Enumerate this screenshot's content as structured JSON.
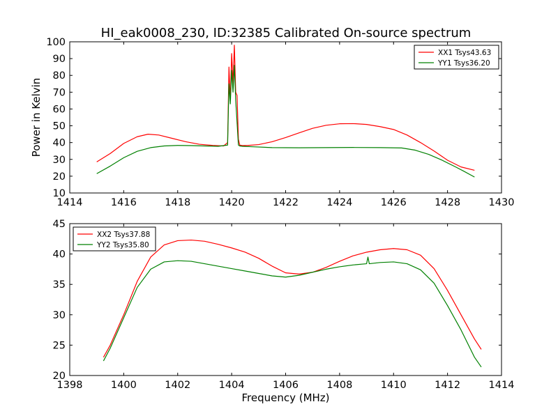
{
  "figure_title": "HI_eak0008_230, ID:32385 Calibrated On-source spectrum",
  "colors": {
    "red": "#ff0000",
    "green": "#008000",
    "axis": "#000000"
  },
  "chart_data": [
    {
      "type": "line",
      "title": "HI_eak0008_230, ID:32385 Calibrated On-source spectrum",
      "xlabel": "",
      "ylabel": "Power in Kelvin",
      "xlim": [
        1414,
        1430
      ],
      "ylim": [
        10,
        100
      ],
      "xticks": [
        1414,
        1416,
        1418,
        1420,
        1422,
        1424,
        1426,
        1428,
        1430
      ],
      "yticks": [
        10,
        20,
        30,
        40,
        50,
        60,
        70,
        80,
        90,
        100
      ],
      "legend_position": "top-right",
      "series": [
        {
          "name": "XX1 Tsys43.63",
          "color": "#ff0000",
          "x": [
            1415.0,
            1415.5,
            1416.0,
            1416.5,
            1416.9,
            1417.3,
            1417.8,
            1418.3,
            1418.8,
            1419.3,
            1419.7,
            1419.85,
            1419.9,
            1419.95,
            1420.0,
            1420.05,
            1420.1,
            1420.15,
            1420.2,
            1420.25,
            1420.3,
            1420.4,
            1420.6,
            1421.0,
            1421.5,
            1422.0,
            1422.5,
            1423.0,
            1423.5,
            1424.0,
            1424.5,
            1425.0,
            1425.5,
            1426.0,
            1426.5,
            1427.0,
            1427.5,
            1428.0,
            1428.5,
            1429.0
          ],
          "y": [
            28.5,
            33.5,
            39.5,
            43.5,
            45.0,
            44.5,
            42.5,
            40.5,
            39.0,
            38.3,
            38.0,
            40.0,
            85.0,
            65.0,
            93.0,
            75.0,
            98.0,
            70.0,
            68.0,
            42.0,
            38.5,
            38.2,
            38.3,
            38.8,
            40.5,
            43.0,
            45.8,
            48.5,
            50.3,
            51.2,
            51.3,
            50.8,
            49.5,
            47.8,
            44.5,
            40.0,
            35.0,
            29.5,
            25.5,
            23.5
          ]
        },
        {
          "name": "YY1 Tsys36.20",
          "color": "#008000",
          "x": [
            1415.0,
            1415.5,
            1416.0,
            1416.5,
            1417.0,
            1417.5,
            1418.0,
            1418.5,
            1419.0,
            1419.5,
            1419.85,
            1419.9,
            1419.95,
            1420.0,
            1420.05,
            1420.1,
            1420.15,
            1420.2,
            1420.25,
            1420.3,
            1420.4,
            1420.8,
            1421.5,
            1422.5,
            1423.5,
            1424.5,
            1425.5,
            1426.3,
            1426.8,
            1427.3,
            1427.8,
            1428.3,
            1428.6,
            1429.0
          ],
          "y": [
            21.5,
            26.0,
            31.0,
            34.8,
            37.0,
            38.0,
            38.3,
            38.2,
            38.0,
            37.8,
            38.5,
            75.0,
            63.0,
            83.0,
            70.0,
            86.0,
            65.0,
            52.0,
            38.5,
            38.0,
            37.8,
            37.5,
            37.0,
            36.9,
            37.0,
            37.1,
            37.0,
            36.8,
            35.5,
            33.0,
            29.5,
            25.5,
            23.0,
            19.5
          ]
        }
      ]
    },
    {
      "type": "line",
      "title": "",
      "xlabel": "Frequency (MHz)",
      "ylabel": "",
      "xlim": [
        1398,
        1414
      ],
      "ylim": [
        20,
        45
      ],
      "xticks": [
        1398,
        1400,
        1402,
        1404,
        1406,
        1408,
        1410,
        1412,
        1414
      ],
      "yticks": [
        20,
        25,
        30,
        35,
        40,
        45
      ],
      "legend_position": "top-left",
      "series": [
        {
          "name": "XX2 Tsys37.88",
          "color": "#ff0000",
          "x": [
            1399.25,
            1399.5,
            1400.0,
            1400.5,
            1401.0,
            1401.5,
            1402.0,
            1402.5,
            1403.0,
            1403.5,
            1404.0,
            1404.5,
            1405.0,
            1405.5,
            1406.0,
            1406.5,
            1407.0,
            1407.5,
            1408.0,
            1408.5,
            1409.0,
            1409.5,
            1410.0,
            1410.5,
            1411.0,
            1411.5,
            1412.0,
            1412.5,
            1413.0,
            1413.25
          ],
          "y": [
            23.0,
            25.0,
            30.0,
            35.5,
            39.5,
            41.5,
            42.2,
            42.3,
            42.1,
            41.6,
            41.0,
            40.3,
            39.3,
            38.0,
            36.9,
            36.7,
            37.0,
            37.8,
            38.8,
            39.7,
            40.3,
            40.7,
            40.9,
            40.7,
            39.8,
            37.6,
            34.0,
            30.0,
            26.0,
            24.3
          ]
        },
        {
          "name": "YY2 Tsys35.80",
          "color": "#008000",
          "x": [
            1399.25,
            1399.5,
            1400.0,
            1400.5,
            1401.0,
            1401.5,
            1402.0,
            1402.5,
            1403.0,
            1403.5,
            1404.0,
            1404.5,
            1405.0,
            1405.5,
            1406.0,
            1406.5,
            1407.0,
            1407.5,
            1408.0,
            1408.5,
            1409.0,
            1409.05,
            1409.1,
            1409.5,
            1410.0,
            1410.5,
            1411.0,
            1411.5,
            1412.0,
            1412.5,
            1413.0,
            1413.25
          ],
          "y": [
            22.4,
            24.5,
            29.5,
            34.5,
            37.5,
            38.7,
            38.9,
            38.8,
            38.4,
            38.0,
            37.6,
            37.2,
            36.8,
            36.4,
            36.2,
            36.5,
            37.0,
            37.5,
            37.9,
            38.2,
            38.4,
            39.5,
            38.4,
            38.6,
            38.7,
            38.4,
            37.4,
            35.2,
            31.5,
            27.5,
            23.0,
            21.4
          ]
        }
      ]
    }
  ]
}
